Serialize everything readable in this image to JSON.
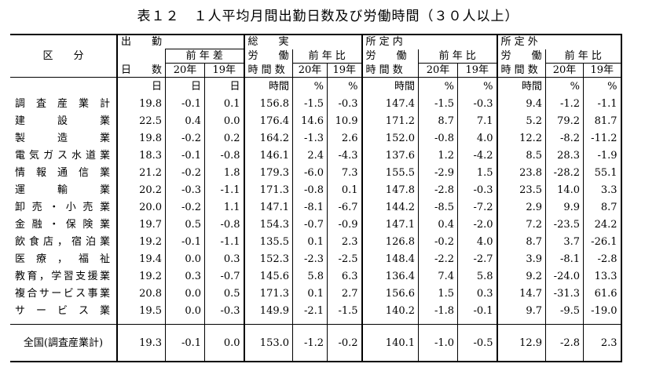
{
  "title": "表１２　１人平均月間出勤日数及び労働時間（３０人以上）",
  "header": {
    "category": "区　　分",
    "days": {
      "h1": "出　　勤",
      "h2": "日　　数",
      "diff": "前 年 差",
      "y20": "20年",
      "y19": "19年"
    },
    "total": {
      "h1": "総　　実",
      "h2a": "労　　働",
      "h2b": "時 間 数",
      "ratio": "前 年 比",
      "y20": "20年",
      "y19": "19年"
    },
    "scheduled": {
      "h1": "所 定 内",
      "h2a": "労　　働",
      "h2b": "時 間 数",
      "ratio": "前 年 比",
      "y20": "20年",
      "y19": "19年"
    },
    "overtime": {
      "h1": "所 定 外",
      "h2a": "労　　働",
      "h2b": "時 間 数",
      "ratio": "前 年 比",
      "y20": "20年",
      "y19": "19年"
    }
  },
  "units": [
    "日",
    "日",
    "日",
    "時間",
    "%",
    "%",
    "時間",
    "%",
    "%",
    "時間",
    "%",
    "%"
  ],
  "rows": [
    {
      "label": "調査産業計",
      "values": [
        "19.8",
        "-0.1",
        "0.1",
        "156.8",
        "-1.5",
        "-0.3",
        "147.4",
        "-1.5",
        "-0.3",
        "9.4",
        "-1.2",
        "-1.1"
      ]
    },
    {
      "label": "建設業",
      "values": [
        "22.5",
        "0.4",
        "0.0",
        "176.4",
        "14.6",
        "10.9",
        "171.2",
        "8.7",
        "7.1",
        "5.2",
        "79.2",
        "81.7"
      ]
    },
    {
      "label": "製造業",
      "values": [
        "19.8",
        "-0.2",
        "0.2",
        "164.2",
        "-1.3",
        "2.6",
        "152.0",
        "-0.8",
        "4.0",
        "12.2",
        "-8.2",
        "-11.2"
      ]
    },
    {
      "label": "電気ガス水道業",
      "values": [
        "18.3",
        "-0.1",
        "-0.8",
        "146.1",
        "2.4",
        "-4.3",
        "137.6",
        "1.2",
        "-4.2",
        "8.5",
        "28.3",
        "-1.9"
      ]
    },
    {
      "label": "情報通信業",
      "values": [
        "21.2",
        "-0.2",
        "1.8",
        "179.3",
        "-6.0",
        "7.3",
        "155.5",
        "-2.9",
        "1.5",
        "23.8",
        "-28.2",
        "55.1"
      ]
    },
    {
      "label": "運輸業",
      "values": [
        "20.2",
        "-0.3",
        "-1.1",
        "171.3",
        "-0.8",
        "0.1",
        "147.8",
        "-2.8",
        "-0.3",
        "23.5",
        "14.0",
        "3.3"
      ]
    },
    {
      "label": "卸売・小売業",
      "values": [
        "20.0",
        "-0.2",
        "1.1",
        "147.1",
        "-8.1",
        "-6.7",
        "144.2",
        "-8.5",
        "-7.2",
        "2.9",
        "9.9",
        "8.7"
      ]
    },
    {
      "label": "金融・保険業",
      "values": [
        "19.7",
        "0.5",
        "-0.8",
        "154.3",
        "-0.7",
        "-0.9",
        "147.1",
        "0.4",
        "-2.0",
        "7.2",
        "-23.5",
        "24.2"
      ]
    },
    {
      "label": "飲食店，宿泊業",
      "values": [
        "19.2",
        "-0.1",
        "-1.1",
        "135.5",
        "0.1",
        "2.3",
        "126.8",
        "-0.2",
        "4.0",
        "8.7",
        "3.7",
        "-26.1"
      ]
    },
    {
      "label": "医療，福祉",
      "values": [
        "19.4",
        "0.0",
        "0.3",
        "152.3",
        "-2.3",
        "-2.5",
        "148.4",
        "-2.2",
        "-2.7",
        "3.9",
        "-8.1",
        "-2.8"
      ]
    },
    {
      "label": "教育，学習支援業",
      "values": [
        "19.2",
        "0.3",
        "-0.7",
        "145.6",
        "5.8",
        "6.3",
        "136.4",
        "7.4",
        "5.8",
        "9.2",
        "-24.0",
        "13.3"
      ]
    },
    {
      "label": "複合サービス事業",
      "values": [
        "20.8",
        "0.0",
        "0.5",
        "171.3",
        "0.1",
        "2.7",
        "156.6",
        "1.5",
        "0.3",
        "14.7",
        "-31.3",
        "61.6"
      ]
    },
    {
      "label": "サービス業",
      "values": [
        "19.5",
        "0.0",
        "-0.3",
        "149.9",
        "-2.1",
        "-1.5",
        "140.2",
        "-1.8",
        "-0.1",
        "9.7",
        "-9.5",
        "-19.0"
      ]
    }
  ],
  "total_row": {
    "label": "全国(調査産業計)",
    "values": [
      "19.3",
      "-0.1",
      "0.0",
      "153.0",
      "-1.2",
      "-0.2",
      "140.1",
      "-1.0",
      "-0.5",
      "12.9",
      "-2.8",
      "2.3"
    ]
  }
}
